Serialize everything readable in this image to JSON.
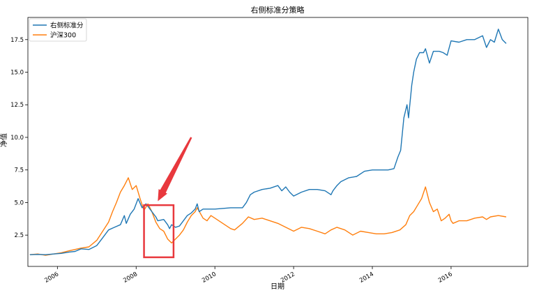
{
  "chart_data": {
    "type": "line",
    "title": "右侧标准分策略",
    "xlabel": "日期",
    "ylabel": "净值",
    "xlim": [
      2005.25,
      2017.95
    ],
    "ylim": [
      0.1,
      19.2
    ],
    "x_ticks": [
      2006,
      2008,
      2010,
      2012,
      2014,
      2016
    ],
    "x_tick_labels": [
      "2006",
      "2008",
      "2010",
      "2012",
      "2014",
      "2016"
    ],
    "y_ticks": [
      2.5,
      5.0,
      7.5,
      10.0,
      12.5,
      15.0,
      17.5
    ],
    "y_tick_labels": [
      "2.5",
      "5.0",
      "7.5",
      "10.0",
      "12.5",
      "15.0",
      "17.5"
    ],
    "grid": false,
    "legend": "upper left",
    "series": [
      {
        "name": "右侧标准分",
        "color": "#1f77b4",
        "points": [
          [
            2005.3,
            1.0
          ],
          [
            2005.5,
            1.02
          ],
          [
            2005.7,
            1.0
          ],
          [
            2005.9,
            1.05
          ],
          [
            2006.1,
            1.1
          ],
          [
            2006.3,
            1.2
          ],
          [
            2006.45,
            1.25
          ],
          [
            2006.6,
            1.45
          ],
          [
            2006.8,
            1.4
          ],
          [
            2007.0,
            1.7
          ],
          [
            2007.15,
            2.3
          ],
          [
            2007.3,
            2.9
          ],
          [
            2007.45,
            3.1
          ],
          [
            2007.6,
            3.3
          ],
          [
            2007.7,
            4.0
          ],
          [
            2007.75,
            3.4
          ],
          [
            2007.85,
            4.1
          ],
          [
            2007.95,
            4.5
          ],
          [
            2008.05,
            5.3
          ],
          [
            2008.15,
            4.6
          ],
          [
            2008.25,
            4.9
          ],
          [
            2008.4,
            4.3
          ],
          [
            2008.5,
            3.9
          ],
          [
            2008.55,
            3.6
          ],
          [
            2008.7,
            3.7
          ],
          [
            2008.8,
            3.3
          ],
          [
            2008.85,
            3.0
          ],
          [
            2008.9,
            3.3
          ],
          [
            2009.0,
            3.1
          ],
          [
            2009.1,
            3.2
          ],
          [
            2009.2,
            3.6
          ],
          [
            2009.3,
            4.0
          ],
          [
            2009.4,
            4.2
          ],
          [
            2009.5,
            4.5
          ],
          [
            2009.55,
            4.9
          ],
          [
            2009.6,
            4.3
          ],
          [
            2009.7,
            4.5
          ],
          [
            2010.0,
            4.5
          ],
          [
            2010.4,
            4.6
          ],
          [
            2010.7,
            4.6
          ],
          [
            2010.8,
            5.0
          ],
          [
            2010.9,
            5.6
          ],
          [
            2011.0,
            5.8
          ],
          [
            2011.2,
            6.0
          ],
          [
            2011.4,
            6.1
          ],
          [
            2011.6,
            6.3
          ],
          [
            2011.7,
            5.9
          ],
          [
            2011.8,
            6.2
          ],
          [
            2011.9,
            5.8
          ],
          [
            2012.0,
            5.5
          ],
          [
            2012.2,
            5.8
          ],
          [
            2012.4,
            6.0
          ],
          [
            2012.6,
            6.0
          ],
          [
            2012.8,
            5.9
          ],
          [
            2012.95,
            5.6
          ],
          [
            2013.0,
            5.9
          ],
          [
            2013.1,
            6.3
          ],
          [
            2013.2,
            6.6
          ],
          [
            2013.4,
            6.9
          ],
          [
            2013.6,
            7.0
          ],
          [
            2013.8,
            7.4
          ],
          [
            2014.0,
            7.5
          ],
          [
            2014.2,
            7.5
          ],
          [
            2014.4,
            7.5
          ],
          [
            2014.55,
            7.6
          ],
          [
            2014.65,
            8.5
          ],
          [
            2014.72,
            9.0
          ],
          [
            2014.8,
            11.5
          ],
          [
            2014.88,
            12.5
          ],
          [
            2014.92,
            11.5
          ],
          [
            2015.0,
            14.0
          ],
          [
            2015.05,
            15.0
          ],
          [
            2015.12,
            16.0
          ],
          [
            2015.2,
            16.5
          ],
          [
            2015.3,
            16.5
          ],
          [
            2015.35,
            16.8
          ],
          [
            2015.45,
            15.7
          ],
          [
            2015.55,
            16.6
          ],
          [
            2015.7,
            16.6
          ],
          [
            2015.8,
            16.5
          ],
          [
            2015.9,
            16.3
          ],
          [
            2016.0,
            17.4
          ],
          [
            2016.2,
            17.3
          ],
          [
            2016.4,
            17.5
          ],
          [
            2016.6,
            17.5
          ],
          [
            2016.8,
            17.8
          ],
          [
            2016.9,
            16.9
          ],
          [
            2017.0,
            17.5
          ],
          [
            2017.1,
            17.3
          ],
          [
            2017.2,
            18.3
          ],
          [
            2017.3,
            17.5
          ],
          [
            2017.4,
            17.2
          ]
        ]
      },
      {
        "name": "沪深300",
        "color": "#ff7f0e",
        "points": [
          [
            2005.3,
            1.0
          ],
          [
            2005.5,
            1.05
          ],
          [
            2005.7,
            0.95
          ],
          [
            2005.9,
            1.05
          ],
          [
            2006.1,
            1.15
          ],
          [
            2006.3,
            1.3
          ],
          [
            2006.45,
            1.4
          ],
          [
            2006.6,
            1.5
          ],
          [
            2006.8,
            1.6
          ],
          [
            2007.0,
            2.1
          ],
          [
            2007.15,
            2.8
          ],
          [
            2007.3,
            3.5
          ],
          [
            2007.4,
            4.3
          ],
          [
            2007.5,
            5.0
          ],
          [
            2007.6,
            5.8
          ],
          [
            2007.7,
            6.3
          ],
          [
            2007.8,
            6.9
          ],
          [
            2007.9,
            6.0
          ],
          [
            2008.0,
            6.3
          ],
          [
            2008.1,
            5.3
          ],
          [
            2008.2,
            4.4
          ],
          [
            2008.3,
            4.9
          ],
          [
            2008.4,
            4.3
          ],
          [
            2008.5,
            3.5
          ],
          [
            2008.6,
            3.0
          ],
          [
            2008.7,
            2.8
          ],
          [
            2008.8,
            2.2
          ],
          [
            2008.9,
            1.9
          ],
          [
            2009.0,
            2.2
          ],
          [
            2009.1,
            2.5
          ],
          [
            2009.2,
            2.9
          ],
          [
            2009.3,
            3.5
          ],
          [
            2009.4,
            4.0
          ],
          [
            2009.5,
            4.3
          ],
          [
            2009.55,
            4.6
          ],
          [
            2009.7,
            3.8
          ],
          [
            2009.8,
            3.6
          ],
          [
            2009.9,
            4.0
          ],
          [
            2010.0,
            3.8
          ],
          [
            2010.2,
            3.4
          ],
          [
            2010.4,
            3.0
          ],
          [
            2010.5,
            2.9
          ],
          [
            2010.7,
            3.4
          ],
          [
            2010.85,
            3.9
          ],
          [
            2011.0,
            3.7
          ],
          [
            2011.2,
            3.8
          ],
          [
            2011.4,
            3.6
          ],
          [
            2011.6,
            3.4
          ],
          [
            2011.8,
            3.1
          ],
          [
            2012.0,
            2.8
          ],
          [
            2012.2,
            3.1
          ],
          [
            2012.4,
            3.0
          ],
          [
            2012.6,
            2.8
          ],
          [
            2012.8,
            2.6
          ],
          [
            2012.95,
            2.9
          ],
          [
            2013.1,
            3.1
          ],
          [
            2013.3,
            2.9
          ],
          [
            2013.5,
            2.5
          ],
          [
            2013.7,
            2.8
          ],
          [
            2013.9,
            2.7
          ],
          [
            2014.1,
            2.6
          ],
          [
            2014.3,
            2.6
          ],
          [
            2014.5,
            2.7
          ],
          [
            2014.7,
            2.9
          ],
          [
            2014.85,
            3.3
          ],
          [
            2014.95,
            4.0
          ],
          [
            2015.05,
            4.3
          ],
          [
            2015.15,
            4.8
          ],
          [
            2015.25,
            5.3
          ],
          [
            2015.35,
            6.2
          ],
          [
            2015.45,
            5.0
          ],
          [
            2015.55,
            4.3
          ],
          [
            2015.65,
            4.5
          ],
          [
            2015.75,
            3.6
          ],
          [
            2015.85,
            3.8
          ],
          [
            2015.95,
            4.1
          ],
          [
            2016.0,
            3.6
          ],
          [
            2016.05,
            3.4
          ],
          [
            2016.2,
            3.6
          ],
          [
            2016.4,
            3.6
          ],
          [
            2016.6,
            3.8
          ],
          [
            2016.8,
            3.9
          ],
          [
            2016.9,
            3.7
          ],
          [
            2017.0,
            3.9
          ],
          [
            2017.2,
            4.0
          ],
          [
            2017.4,
            3.9
          ]
        ]
      }
    ],
    "annotations": [
      {
        "type": "rectangle",
        "color": "#e8383d",
        "x_range": [
          2008.2,
          2008.95
        ],
        "y_range": [
          0.8,
          4.8
        ]
      },
      {
        "type": "arrow",
        "color": "#e8383d",
        "from": [
          2009.4,
          10.0
        ],
        "to": [
          2008.55,
          5.1
        ]
      }
    ]
  }
}
